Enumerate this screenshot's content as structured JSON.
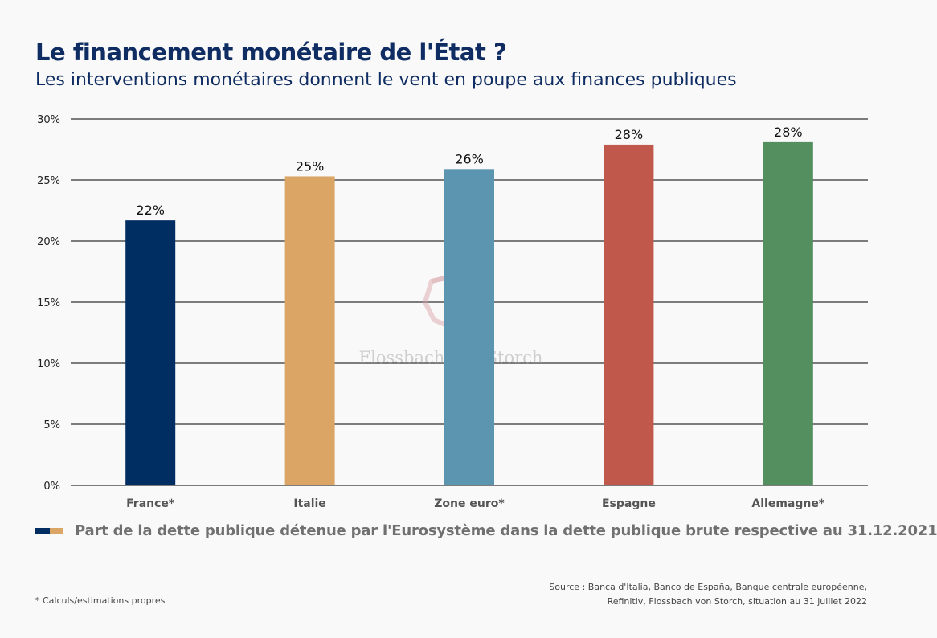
{
  "title": "Le financement monétaire de l'État ?",
  "subtitle": "Les interventions monétaires donnent le vent en poupe aux finances publiques",
  "watermark": "Flossbach von Storch",
  "legend": {
    "label": "Part de la dette publique détenue par l'Eurosystème dans la dette publique brute respective au 31.12.2021",
    "colors": [
      "#002d62",
      "#dba665"
    ]
  },
  "footnote": "* Calculs/estimations propres",
  "source_lines": [
    "Source : Banca d'Italia, Banco de España, Banque centrale européenne,",
    "Refinitiv, Flossbach von Storch, situation au 31 juillet 2022"
  ],
  "chart_data": {
    "type": "bar",
    "categories": [
      "France*",
      "Italie",
      "Zone euro*",
      "Espagne",
      "Allemagne*"
    ],
    "values": [
      21.7,
      25.3,
      25.9,
      27.9,
      28.1
    ],
    "value_labels": [
      "22%",
      "25%",
      "26%",
      "28%",
      "28%"
    ],
    "colors": [
      "#002d62",
      "#dba665",
      "#5b95b0",
      "#c0584b",
      "#538f5f"
    ],
    "yticks": [
      0,
      5,
      10,
      15,
      20,
      25,
      30
    ],
    "ytick_labels": [
      "0%",
      "5%",
      "10%",
      "15%",
      "20%",
      "25%",
      "30%"
    ],
    "ylim": [
      0,
      30
    ],
    "grid": true,
    "legend_position": "bottom-left"
  }
}
